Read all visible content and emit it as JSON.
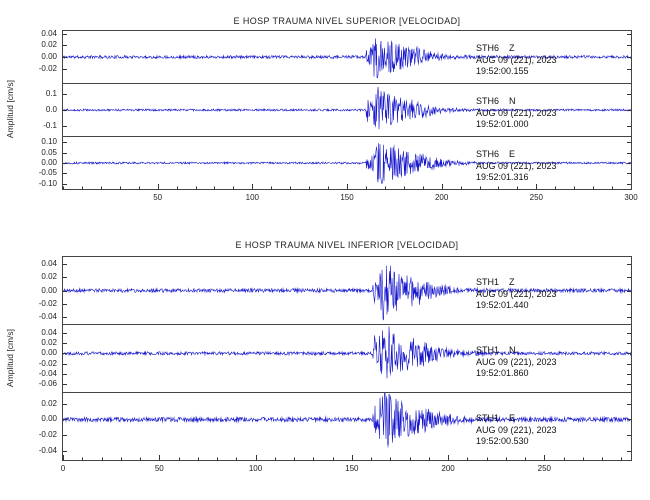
{
  "style": {
    "trace_color": "#1414cc",
    "axis_color": "#333333",
    "text_color": "#111111",
    "background": "#ffffff"
  },
  "chart_data": {
    "type": "line",
    "subtype": "seismogram-multitrace",
    "ylabel": "Amplitud [cm/s]",
    "grid": false,
    "panels": [
      {
        "title": "E HOSP TRAUMA NIVEL SUPERIOR [VELOCIDAD]",
        "xlim": [
          0,
          300
        ],
        "xticks": [
          50,
          100,
          150,
          200,
          250,
          300
        ],
        "xtick_labels": [
          "50",
          "100",
          "150",
          "200",
          "250",
          "300"
        ],
        "x_minor_step": 10,
        "traces": [
          {
            "station": "STH6",
            "component": "Z",
            "date": "AUG 09 (221), 2023",
            "time": "19:52:00.155",
            "ylim": [
              -0.045,
              0.045
            ],
            "yticks": [
              0.04,
              0.02,
              0.0,
              -0.02
            ],
            "ytick_labels": [
              "0.04",
              "0.02",
              "0.00",
              "-0.02"
            ],
            "waveform": {
              "noise_amp": 0.0032,
              "event_onset": 160,
              "event_peak_time": 165,
              "peak_amp": 0.042,
              "decay": 14,
              "coda_end": 235,
              "seed": 11
            }
          },
          {
            "station": "STH6",
            "component": "N",
            "date": "AUG 09 (221), 2023",
            "time": "19:52:01.000",
            "ylim": [
              -0.16,
              0.16
            ],
            "yticks": [
              0.1,
              0.0,
              -0.1
            ],
            "ytick_labels": [
              "0.1",
              "0.0",
              "-0.1"
            ],
            "waveform": {
              "noise_amp": 0.008,
              "event_onset": 160,
              "event_peak_time": 166,
              "peak_amp": 0.15,
              "decay": 13,
              "coda_end": 235,
              "seed": 12
            }
          },
          {
            "station": "STH6",
            "component": "E",
            "date": "AUG 09 (221), 2023",
            "time": "19:52:01.316",
            "ylim": [
              -0.125,
              0.125
            ],
            "yticks": [
              0.1,
              0.05,
              0.0,
              -0.05,
              -0.1
            ],
            "ytick_labels": [
              "0.10",
              "0.05",
              "0.00",
              "-0.05",
              "-0.10"
            ],
            "waveform": {
              "noise_amp": 0.006,
              "event_onset": 160,
              "event_peak_time": 167,
              "peak_amp": 0.115,
              "decay": 15,
              "coda_end": 240,
              "seed": 13
            }
          }
        ]
      },
      {
        "title": "E HOSP TRAUMA NIVEL INFERIOR [VELOCIDAD]",
        "xlim": [
          0,
          295
        ],
        "xticks": [
          0,
          50,
          100,
          150,
          200,
          250
        ],
        "xtick_labels": [
          "0",
          "50",
          "100",
          "150",
          "200",
          "250"
        ],
        "x_minor_step": 10,
        "traces": [
          {
            "station": "STH1",
            "component": "Z",
            "date": "AUG 09 (221), 2023",
            "time": "19:52:01.440",
            "ylim": [
              -0.05,
              0.05
            ],
            "yticks": [
              0.04,
              0.02,
              0.0,
              -0.02,
              -0.04
            ],
            "ytick_labels": [
              "0.04",
              "0.02",
              "0.00",
              "-0.02",
              "-0.04"
            ],
            "waveform": {
              "noise_amp": 0.0035,
              "event_onset": 161,
              "event_peak_time": 166,
              "peak_amp": 0.046,
              "decay": 13,
              "coda_end": 240,
              "seed": 21
            }
          },
          {
            "station": "STH1",
            "component": "N",
            "date": "AUG 09 (221), 2023",
            "time": "19:52:01.860",
            "ylim": [
              -0.075,
              0.055
            ],
            "yticks": [
              0.04,
              0.02,
              0.0,
              -0.02,
              -0.04,
              -0.06
            ],
            "ytick_labels": [
              "0.04",
              "0.02",
              "0.00",
              "-0.02",
              "-0.04",
              "-0.06"
            ],
            "waveform": {
              "noise_amp": 0.004,
              "event_onset": 161,
              "event_peak_time": 166,
              "peak_amp": 0.06,
              "decay": 14,
              "coda_end": 240,
              "seed": 22
            }
          },
          {
            "station": "STH1",
            "component": "E",
            "date": "AUG 09 (221), 2023",
            "time": "19:52:00.530",
            "ylim": [
              -0.052,
              0.034
            ],
            "yticks": [
              0.02,
              0.0,
              -0.02,
              -0.04
            ],
            "ytick_labels": [
              "0.02",
              "0.00",
              "-0.02",
              "-0.04"
            ],
            "waveform": {
              "noise_amp": 0.0035,
              "event_onset": 161,
              "event_peak_time": 166,
              "peak_amp": 0.042,
              "decay": 14,
              "coda_end": 240,
              "seed": 23
            }
          }
        ]
      }
    ]
  }
}
